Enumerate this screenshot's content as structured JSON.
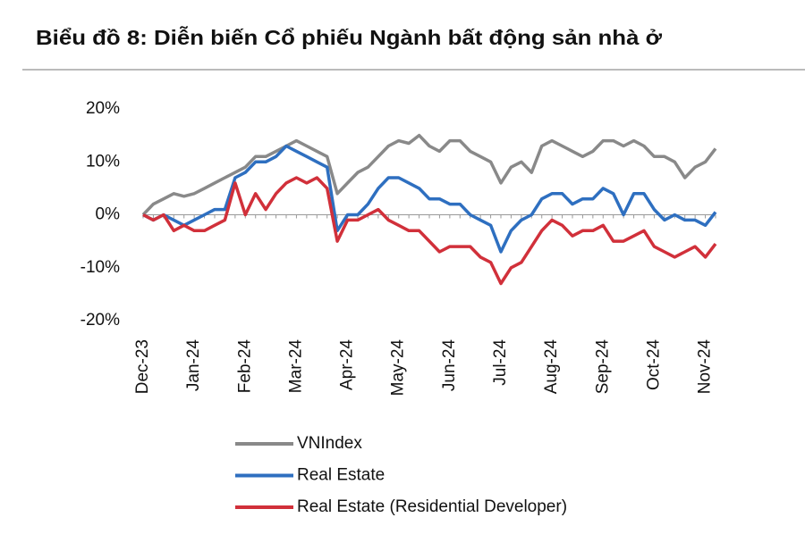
{
  "chart_data": {
    "type": "line",
    "title": "Biểu đồ 8: Diễn biến Cổ phiếu Ngành bất động sản nhà ở",
    "categories": [
      "Dec-23",
      null,
      null,
      null,
      null,
      "Jan-24",
      null,
      null,
      null,
      null,
      "Feb-24",
      null,
      null,
      null,
      null,
      "Mar-24",
      null,
      null,
      null,
      null,
      "Apr-24",
      null,
      null,
      null,
      null,
      "May-24",
      null,
      null,
      null,
      null,
      "Jun-24",
      null,
      null,
      null,
      null,
      "Jul-24",
      null,
      null,
      null,
      null,
      "Aug-24",
      null,
      null,
      null,
      null,
      "Sep-24",
      null,
      null,
      null,
      null,
      "Oct-24",
      null,
      null,
      null,
      null,
      "Nov-24",
      null
    ],
    "series": [
      {
        "name": "VNIndex",
        "color": "#898989",
        "values": [
          0,
          2,
          3,
          4,
          3.5,
          4,
          5,
          6,
          7,
          8,
          9,
          11,
          11,
          12,
          13,
          14,
          13,
          12,
          11,
          4,
          6,
          8,
          9,
          11,
          13,
          14,
          13.5,
          15,
          13,
          12,
          14,
          14,
          12,
          11,
          10,
          6,
          9,
          10,
          8,
          13,
          14,
          13,
          12,
          11,
          12,
          14,
          14,
          13,
          14,
          13,
          11,
          11,
          10,
          7,
          9,
          10,
          12.5
        ]
      },
      {
        "name": "Real Estate",
        "color": "#2e6fc0",
        "values": [
          0,
          -1,
          0,
          -1,
          -2,
          -1,
          0,
          1,
          1,
          7,
          8,
          10,
          10,
          11,
          13,
          12,
          11,
          10,
          9,
          -3,
          0,
          0,
          2,
          5,
          7,
          7,
          6,
          5,
          3,
          3,
          2,
          2,
          0,
          -1,
          -2,
          -7,
          -3,
          -1,
          0,
          3,
          4,
          4,
          2,
          3,
          3,
          5,
          4,
          0,
          4,
          4,
          1,
          -1,
          0,
          -1,
          -1,
          -2,
          0.5
        ]
      },
      {
        "name": "Real Estate (Residential Developer)",
        "color": "#d1303a",
        "values": [
          0,
          -1,
          0,
          -3,
          -2,
          -3,
          -3,
          -2,
          -1,
          6,
          0,
          4,
          1,
          4,
          6,
          7,
          6,
          7,
          5,
          -5,
          -1,
          -1,
          0,
          1,
          -1,
          -2,
          -3,
          -3,
          -5,
          -7,
          -6,
          -6,
          -6,
          -8,
          -9,
          -13,
          -10,
          -9,
          -6,
          -3,
          -1,
          -2,
          -4,
          -3,
          -3,
          -2,
          -5,
          -5,
          -4,
          -3,
          -6,
          -7,
          -8,
          -7,
          -6,
          -8,
          -5.5
        ]
      }
    ],
    "ylim": [
      -20,
      20
    ],
    "yticks": [
      {
        "value": -20,
        "label": "-20%"
      },
      {
        "value": -10,
        "label": "-10%"
      },
      {
        "value": 0,
        "label": "0%"
      },
      {
        "value": 10,
        "label": "10%"
      },
      {
        "value": 20,
        "label": "20%"
      }
    ],
    "grid": false
  }
}
